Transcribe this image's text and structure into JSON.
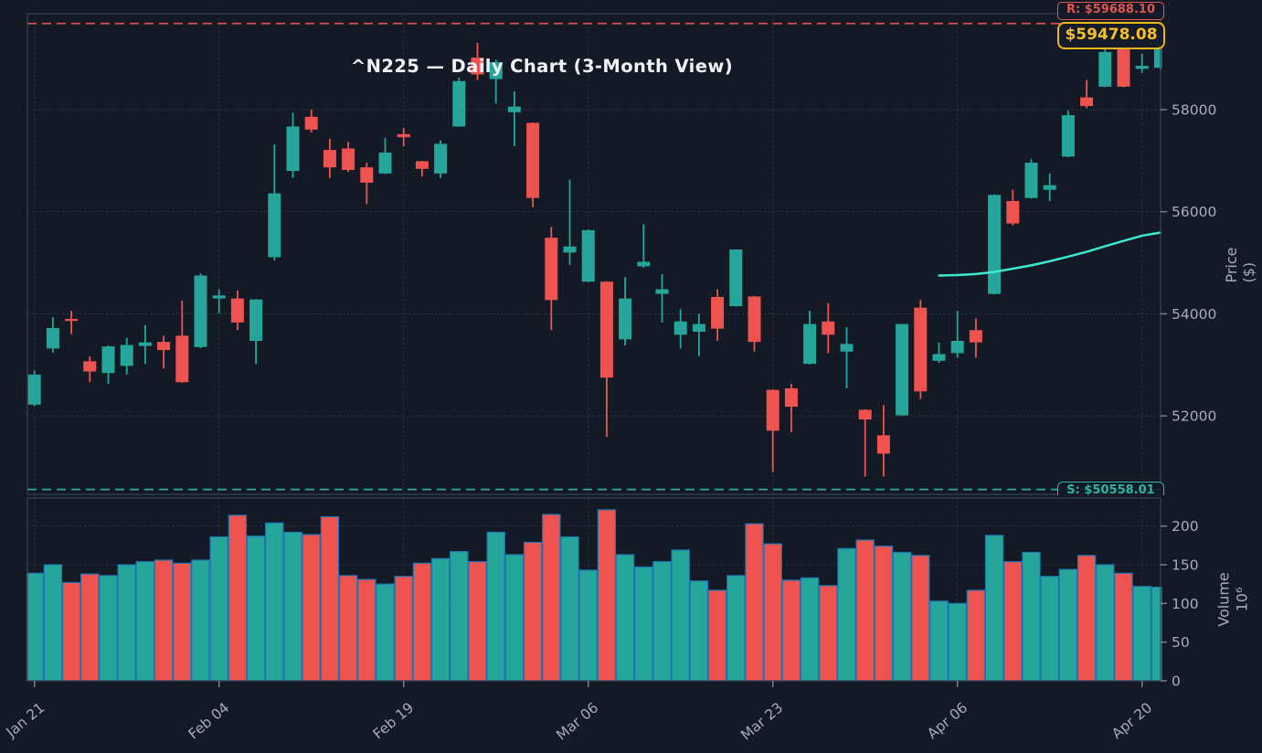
{
  "title": "^N225 — Daily Chart (3-Month View)",
  "annotations": {
    "resistance_label": "R: $59688.10",
    "resistance_value": 59688.1,
    "current_price_label": "$59478.08",
    "current_price_value": 59478.08,
    "support_label": "S: $50558.01",
    "support_value": 50558.01
  },
  "axes": {
    "price_label": "Price ($)",
    "volume_label": "Volume",
    "volume_unit": "10⁶",
    "price_ticks": [
      58000,
      56000,
      54000,
      52000
    ],
    "volume_ticks": [
      200,
      150,
      100,
      50,
      0
    ],
    "x_tick_labels": [
      "Jan 21",
      "Feb 04",
      "Feb 19",
      "Mar 06",
      "Mar 23",
      "Apr 06",
      "Apr 20"
    ],
    "x_tick_indices": [
      0,
      10,
      20,
      30,
      40,
      50,
      60
    ]
  },
  "colors": {
    "background": "#131a26",
    "up": "#26a69a",
    "down": "#ef5350",
    "volume_edge": "#1f77b4",
    "ma_line": "#3be8d0",
    "resistance": "#e0564f",
    "support": "#2db5a3",
    "badge": "#f0b41c",
    "grid": "#434b5f",
    "spine": "#3a4152",
    "tick_text": "#a6acb8"
  },
  "chart_data": {
    "type": "candlestick",
    "symbol": "^N225",
    "timeframe": "Daily, 3-month view",
    "ohlcv_format": [
      "open",
      "high",
      "low",
      "close",
      "volume_millions"
    ],
    "candles": [
      [
        52220,
        52890,
        52190,
        52810,
        139
      ],
      [
        53320,
        53930,
        53240,
        53720,
        150
      ],
      [
        53900,
        54060,
        53600,
        53860,
        127
      ],
      [
        53070,
        53170,
        52660,
        52870,
        138
      ],
      [
        52840,
        53380,
        52630,
        53360,
        136
      ],
      [
        52980,
        53530,
        52810,
        53390,
        150
      ],
      [
        53370,
        53780,
        53020,
        53440,
        154
      ],
      [
        53450,
        53570,
        52930,
        53290,
        156
      ],
      [
        53570,
        54260,
        52650,
        52660,
        152
      ],
      [
        53350,
        54790,
        53330,
        54750,
        156
      ],
      [
        54300,
        54480,
        54010,
        54360,
        186
      ],
      [
        54300,
        54460,
        53680,
        53830,
        214
      ],
      [
        53470,
        54290,
        53020,
        54280,
        187
      ],
      [
        55110,
        57320,
        55050,
        56360,
        204
      ],
      [
        56800,
        57940,
        56660,
        57670,
        192
      ],
      [
        57860,
        58000,
        57550,
        57610,
        189
      ],
      [
        57210,
        57430,
        56660,
        56870,
        212
      ],
      [
        57240,
        57370,
        56780,
        56820,
        136
      ],
      [
        56870,
        56960,
        56150,
        56570,
        131
      ],
      [
        56750,
        57450,
        56740,
        57160,
        125
      ],
      [
        57520,
        57640,
        57280,
        57460,
        135
      ],
      [
        56990,
        57000,
        56690,
        56840,
        152
      ],
      [
        56750,
        57400,
        56660,
        57330,
        158
      ],
      [
        57670,
        58630,
        57660,
        58560,
        167
      ],
      [
        59020,
        59310,
        58580,
        58690,
        154
      ],
      [
        58600,
        58980,
        58120,
        58930,
        192
      ],
      [
        57950,
        58360,
        57280,
        58060,
        163
      ],
      [
        57740,
        57750,
        56090,
        56270,
        179
      ],
      [
        55490,
        55700,
        53680,
        54270,
        215
      ],
      [
        55200,
        56630,
        54960,
        55320,
        186
      ],
      [
        54630,
        55650,
        54620,
        55640,
        143
      ],
      [
        54630,
        54640,
        51590,
        52750,
        221
      ],
      [
        53500,
        54720,
        53380,
        54300,
        163
      ],
      [
        54930,
        55760,
        54900,
        55020,
        147
      ],
      [
        54390,
        54780,
        53830,
        54480,
        154
      ],
      [
        53590,
        54090,
        53320,
        53850,
        169
      ],
      [
        53650,
        54000,
        53170,
        53800,
        129
      ],
      [
        54330,
        54480,
        53470,
        53710,
        117
      ],
      [
        54150,
        55260,
        54140,
        55260,
        136
      ],
      [
        54340,
        54350,
        53260,
        53450,
        203
      ],
      [
        52510,
        52520,
        50900,
        51710,
        177
      ],
      [
        52540,
        52630,
        51680,
        52180,
        130
      ],
      [
        53020,
        54060,
        53010,
        53800,
        133
      ],
      [
        53850,
        54210,
        53230,
        53590,
        123
      ],
      [
        53260,
        53740,
        52540,
        53410,
        171
      ],
      [
        52120,
        52130,
        50810,
        51930,
        182
      ],
      [
        51620,
        52210,
        50810,
        51260,
        174
      ],
      [
        52010,
        53800,
        52000,
        53800,
        166
      ],
      [
        54120,
        54270,
        52330,
        52480,
        162
      ],
      [
        53080,
        53440,
        53040,
        53210,
        103
      ],
      [
        53230,
        54060,
        53140,
        53470,
        100
      ],
      [
        53680,
        53910,
        53140,
        53440,
        117
      ],
      [
        54390,
        56340,
        54380,
        56330,
        188
      ],
      [
        56210,
        56430,
        55730,
        55770,
        154
      ],
      [
        56270,
        57030,
        56260,
        56960,
        166
      ],
      [
        56430,
        56750,
        56210,
        56520,
        135
      ],
      [
        57080,
        57980,
        57070,
        57890,
        144
      ],
      [
        58240,
        58580,
        58030,
        58070,
        162
      ],
      [
        58450,
        59220,
        58440,
        59130,
        150
      ],
      [
        59190,
        59250,
        58440,
        58450,
        139
      ],
      [
        58800,
        59100,
        58720,
        58860,
        122
      ],
      [
        58820,
        59490,
        58780,
        59478.08,
        121
      ]
    ],
    "ma_line": {
      "start_index": 49,
      "prices": [
        54750,
        54760,
        54780,
        54820,
        54885,
        54950,
        55030,
        55120,
        55215,
        55325,
        55430,
        55530,
        55592
      ]
    }
  }
}
